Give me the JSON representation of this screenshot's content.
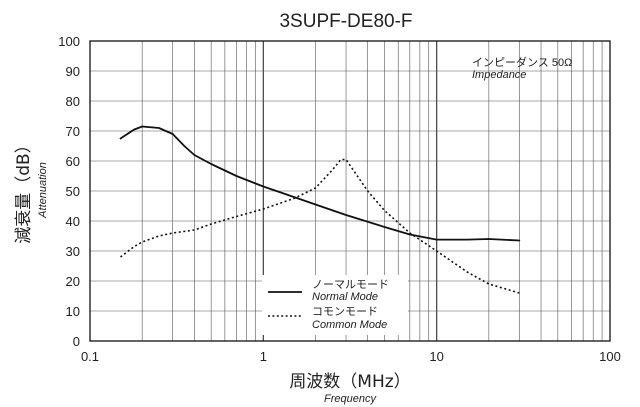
{
  "chart_data": {
    "type": "line",
    "title": "3SUPF-DE80-F",
    "xlabel": "周波数（MHz）",
    "xlabel_sub": "Frequency",
    "ylabel": "減衰量（dB）",
    "ylabel_sub": "Attenuation",
    "x_scale": "log",
    "xlim": [
      0.1,
      100
    ],
    "ylim": [
      0,
      100
    ],
    "x_ticks": [
      "0.1",
      "1",
      "10",
      "100"
    ],
    "y_ticks": [
      "0",
      "10",
      "20",
      "30",
      "40",
      "50",
      "60",
      "70",
      "80",
      "90",
      "100"
    ],
    "grid": true,
    "annotation": {
      "line1": "インピーダンス 50Ω",
      "line2": "Impedance"
    },
    "legend": {
      "placement": "bottom-center",
      "entries": [
        {
          "label": "ノーマルモード",
          "sublabel": "Normal Mode",
          "style": "solid"
        },
        {
          "label": "コモンモード",
          "sublabel": "Common Mode",
          "style": "dotted"
        }
      ]
    },
    "series": [
      {
        "label": "ノーマルモード",
        "style": "solid",
        "color": "#111111",
        "x": [
          0.15,
          0.18,
          0.2,
          0.25,
          0.3,
          0.35,
          0.4,
          0.5,
          0.7,
          1,
          1.5,
          2,
          3,
          5,
          7,
          10,
          15,
          20,
          30
        ],
        "y": [
          67.5,
          70.5,
          71.5,
          71,
          69,
          65,
          62,
          59,
          55,
          51.5,
          48,
          45.5,
          42,
          38,
          35.5,
          33.8,
          33.8,
          34,
          33.5
        ]
      },
      {
        "label": "コモンモード",
        "style": "dotted",
        "color": "#111111",
        "x": [
          0.15,
          0.18,
          0.2,
          0.25,
          0.3,
          0.4,
          0.5,
          0.7,
          1,
          1.5,
          2,
          2.5,
          2.8,
          3,
          3.3,
          4,
          5,
          7,
          10,
          15,
          20,
          30
        ],
        "y": [
          28,
          31.5,
          33,
          35,
          36,
          37,
          39,
          41.5,
          44,
          47.5,
          51,
          57,
          60.5,
          60.5,
          57,
          50,
          43.5,
          36,
          30,
          23,
          19,
          16
        ]
      }
    ]
  }
}
